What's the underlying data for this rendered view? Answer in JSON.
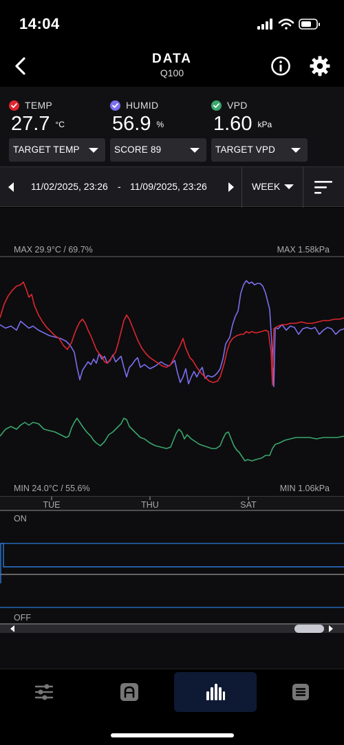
{
  "status": {
    "time": "14:04"
  },
  "header": {
    "title": "DATA",
    "subtitle": "Q100"
  },
  "metrics": [
    {
      "label": "TEMP",
      "value": "27.7",
      "unit": "°C",
      "color": "#e0262f"
    },
    {
      "label": "HUMID",
      "value": "56.9",
      "unit": "%",
      "color": "#7b6ff0"
    },
    {
      "label": "VPD",
      "value": "1.60",
      "unit": "kPa",
      "color": "#3aa76d"
    }
  ],
  "dropdowns": {
    "target_temp": "TARGET TEMP",
    "score": "SCORE 89",
    "target_vpd": "TARGET VPD"
  },
  "range": {
    "start": "11/02/2025, 23:26",
    "separator": "-",
    "end": "11/09/2025, 23:26",
    "period": "WEEK"
  },
  "chart_labels": {
    "max_left": "MAX 29.9°C / 69.7%",
    "max_right": "MAX 1.58kPa",
    "min_left": "MIN 24.0°C / 55.6%",
    "min_right": "MIN 1.06kPa",
    "days": [
      "TUE",
      "THU",
      "SAT"
    ],
    "on": "ON",
    "off": "OFF"
  },
  "tabs": [
    {
      "name": "controls",
      "icon": "sliders-icon"
    },
    {
      "name": "automation",
      "icon": "automation-icon"
    },
    {
      "name": "data",
      "icon": "bar-chart-icon",
      "active": true
    },
    {
      "name": "logs",
      "icon": "list-icon"
    }
  ]
}
